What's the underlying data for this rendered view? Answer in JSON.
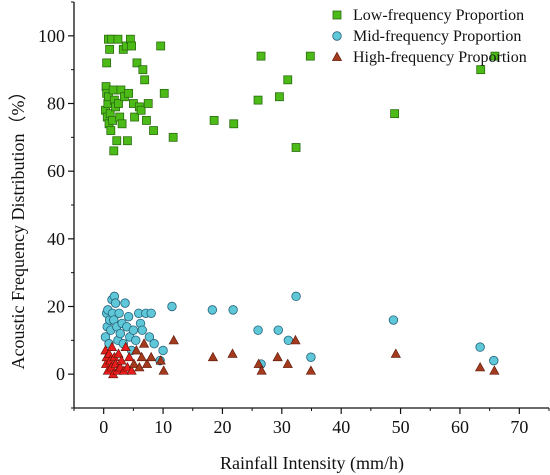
{
  "chart_data": {
    "type": "scatter",
    "title": "",
    "xlabel": "Rainfall Intensity (mm/h)",
    "ylabel": "Acoustic Frequency Distribution（%）",
    "xlim": [
      -5,
      75
    ],
    "ylim": [
      -10,
      110
    ],
    "xticks": [
      0,
      10,
      20,
      30,
      40,
      50,
      60,
      70
    ],
    "yticks": [
      0,
      20,
      40,
      60,
      80,
      100
    ],
    "grid": false,
    "legend_position": "top-right",
    "series": [
      {
        "name": "Low-frequency Proportion",
        "marker": "square",
        "color": "#4cbb17",
        "points": [
          [
            0.3,
            78
          ],
          [
            0.4,
            85
          ],
          [
            0.5,
            83
          ],
          [
            0.5,
            92
          ],
          [
            0.6,
            76
          ],
          [
            0.7,
            80
          ],
          [
            0.8,
            82
          ],
          [
            0.8,
            99
          ],
          [
            0.9,
            74
          ],
          [
            1.0,
            96
          ],
          [
            1.1,
            77
          ],
          [
            1.2,
            72
          ],
          [
            1.3,
            99
          ],
          [
            1.5,
            75
          ],
          [
            1.6,
            84
          ],
          [
            1.7,
            66
          ],
          [
            1.8,
            81
          ],
          [
            2.0,
            79
          ],
          [
            2.2,
            69
          ],
          [
            2.4,
            99
          ],
          [
            2.5,
            80
          ],
          [
            2.7,
            76
          ],
          [
            2.9,
            84
          ],
          [
            3.1,
            74
          ],
          [
            3.3,
            96
          ],
          [
            3.5,
            82
          ],
          [
            3.8,
            97
          ],
          [
            4.0,
            69
          ],
          [
            4.2,
            83
          ],
          [
            4.5,
            99
          ],
          [
            4.7,
            97
          ],
          [
            5.0,
            80
          ],
          [
            5.2,
            76
          ],
          [
            5.6,
            92
          ],
          [
            6.0,
            79
          ],
          [
            6.3,
            78
          ],
          [
            6.6,
            90
          ],
          [
            6.9,
            87
          ],
          [
            7.2,
            75
          ],
          [
            7.5,
            80
          ],
          [
            8.4,
            72
          ],
          [
            9.6,
            97
          ],
          [
            10.2,
            83
          ],
          [
            11.7,
            70
          ],
          [
            18.6,
            75
          ],
          [
            21.9,
            74
          ],
          [
            26.0,
            81
          ],
          [
            26.5,
            94
          ],
          [
            29.6,
            82
          ],
          [
            31.0,
            87
          ],
          [
            32.4,
            67
          ],
          [
            34.8,
            94
          ],
          [
            49.0,
            77
          ],
          [
            63.5,
            90
          ],
          [
            65.9,
            94
          ]
        ]
      },
      {
        "name": "Mid-frequency Proportion",
        "marker": "circle",
        "color": "#5ec8d8",
        "points": [
          [
            0.3,
            11
          ],
          [
            0.5,
            18
          ],
          [
            0.6,
            14
          ],
          [
            0.7,
            19
          ],
          [
            0.9,
            9
          ],
          [
            1.0,
            16
          ],
          [
            1.2,
            13
          ],
          [
            1.4,
            22
          ],
          [
            1.5,
            18
          ],
          [
            1.7,
            16
          ],
          [
            1.8,
            23
          ],
          [
            2.0,
            21
          ],
          [
            2.2,
            14
          ],
          [
            2.4,
            10
          ],
          [
            2.6,
            18
          ],
          [
            2.8,
            12
          ],
          [
            3.1,
            15
          ],
          [
            3.3,
            9
          ],
          [
            3.6,
            21
          ],
          [
            3.9,
            14
          ],
          [
            4.2,
            17
          ],
          [
            4.4,
            11
          ],
          [
            4.7,
            7
          ],
          [
            5.0,
            13
          ],
          [
            5.4,
            10
          ],
          [
            5.9,
            18
          ],
          [
            6.2,
            15
          ],
          [
            6.5,
            13
          ],
          [
            7.1,
            18
          ],
          [
            7.7,
            11
          ],
          [
            8.0,
            18
          ],
          [
            8.5,
            9
          ],
          [
            9.5,
            4
          ],
          [
            10.0,
            7
          ],
          [
            11.5,
            20
          ],
          [
            18.3,
            19
          ],
          [
            21.8,
            19
          ],
          [
            26.0,
            13
          ],
          [
            26.5,
            3
          ],
          [
            29.4,
            13
          ],
          [
            31.1,
            10
          ],
          [
            32.4,
            23
          ],
          [
            34.9,
            5
          ],
          [
            48.8,
            16
          ],
          [
            63.4,
            8
          ],
          [
            65.7,
            4
          ]
        ]
      },
      {
        "name": "High-frequency Proportion",
        "marker": "triangle",
        "color": "#a33a1e",
        "points": [
          [
            0.3,
            7
          ],
          [
            0.4,
            3
          ],
          [
            0.5,
            5
          ],
          [
            0.7,
            1
          ],
          [
            0.9,
            6
          ],
          [
            1.1,
            4
          ],
          [
            1.3,
            2
          ],
          [
            1.4,
            8
          ],
          [
            1.6,
            0
          ],
          [
            1.8,
            5
          ],
          [
            2.0,
            3
          ],
          [
            2.3,
            1
          ],
          [
            2.5,
            6
          ],
          [
            2.8,
            2
          ],
          [
            3.0,
            4
          ],
          [
            3.4,
            1
          ],
          [
            3.7,
            8
          ],
          [
            4.0,
            2
          ],
          [
            4.3,
            5
          ],
          [
            4.7,
            1
          ],
          [
            5.1,
            3
          ],
          [
            5.5,
            7
          ],
          [
            6.0,
            2
          ],
          [
            6.4,
            5
          ],
          [
            6.8,
            9
          ],
          [
            7.3,
            3
          ],
          [
            8.0,
            5
          ],
          [
            9.6,
            4
          ],
          [
            10.1,
            1
          ],
          [
            11.8,
            10
          ],
          [
            18.4,
            5
          ],
          [
            21.7,
            6
          ],
          [
            26.1,
            3
          ],
          [
            26.6,
            1
          ],
          [
            29.3,
            5
          ],
          [
            31.0,
            3
          ],
          [
            32.3,
            10
          ],
          [
            34.9,
            1
          ],
          [
            49.2,
            6
          ],
          [
            63.4,
            2
          ],
          [
            65.8,
            1
          ]
        ]
      }
    ]
  }
}
